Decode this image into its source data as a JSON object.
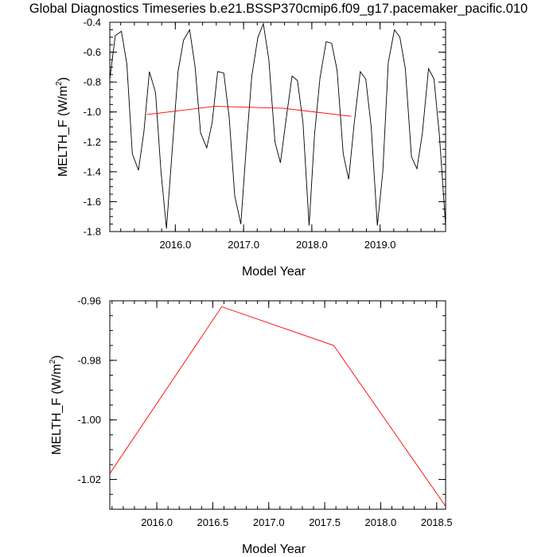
{
  "title": "Global Diagnostics Timeseries b.e21.BSSP370cmip6.f09_g17.pacemaker_pacific.010",
  "chart_data": [
    {
      "type": "line",
      "xlabel": "Model Year",
      "ylabel": "MELTH_F (W/m",
      "ylabel_sup": "2",
      "ylabel_close": ")",
      "xlim": [
        2015.04,
        2019.96
      ],
      "ylim": [
        -1.8,
        -0.4
      ],
      "xticks": [
        2016.0,
        2017.0,
        2018.0,
        2019.0
      ],
      "xtick_labels": [
        "2016.0",
        "2017.0",
        "2018.0",
        "2019.0"
      ],
      "yticks": [
        -0.4,
        -0.6,
        -0.8,
        -1.0,
        -1.2,
        -1.4,
        -1.6,
        -1.8
      ],
      "ytick_labels": [
        "-0.4",
        "-0.6",
        "-0.8",
        "-1.0",
        "-1.2",
        "-1.4",
        "-1.6",
        "-1.8"
      ],
      "series": [
        {
          "color": "#000000",
          "x": [
            2015.04,
            2015.12,
            2015.21,
            2015.29,
            2015.37,
            2015.46,
            2015.54,
            2015.62,
            2015.71,
            2015.79,
            2015.87,
            2015.96,
            2016.04,
            2016.12,
            2016.21,
            2016.29,
            2016.37,
            2016.46,
            2016.54,
            2016.62,
            2016.71,
            2016.79,
            2016.87,
            2016.96,
            2017.04,
            2017.12,
            2017.21,
            2017.29,
            2017.37,
            2017.46,
            2017.54,
            2017.62,
            2017.71,
            2017.79,
            2017.87,
            2017.96,
            2018.04,
            2018.12,
            2018.21,
            2018.29,
            2018.37,
            2018.46,
            2018.54,
            2018.62,
            2018.71,
            2018.79,
            2018.87,
            2018.96,
            2019.04,
            2019.12,
            2019.21,
            2019.29,
            2019.37,
            2019.46,
            2019.54,
            2019.62,
            2019.71,
            2019.79,
            2019.87,
            2019.96
          ],
          "y": [
            -0.78,
            -0.49,
            -0.46,
            -0.68,
            -1.28,
            -1.39,
            -1.13,
            -0.73,
            -0.87,
            -1.4,
            -1.78,
            -1.22,
            -0.73,
            -0.52,
            -0.45,
            -0.7,
            -1.14,
            -1.24,
            -1.07,
            -0.73,
            -0.74,
            -1.04,
            -1.56,
            -1.75,
            -1.23,
            -0.76,
            -0.5,
            -0.41,
            -0.65,
            -1.2,
            -1.34,
            -1.06,
            -0.76,
            -0.79,
            -1.07,
            -1.76,
            -1.15,
            -0.77,
            -0.53,
            -0.54,
            -0.72,
            -1.28,
            -1.45,
            -1.08,
            -0.73,
            -0.78,
            -1.1,
            -1.76,
            -1.4,
            -0.67,
            -0.45,
            -0.5,
            -0.71,
            -1.3,
            -1.38,
            -1.14,
            -0.71,
            -0.78,
            -1.16,
            -1.76
          ]
        },
        {
          "color": "#ff0000",
          "x": [
            2015.58,
            2016.58,
            2017.58,
            2018.58
          ],
          "y": [
            -1.018,
            -0.962,
            -0.975,
            -1.029
          ]
        }
      ]
    },
    {
      "type": "line",
      "xlabel": "Model Year",
      "ylabel": "MELTH_F (W/m",
      "ylabel_sup": "2",
      "ylabel_close": ")",
      "xlim": [
        2015.58,
        2018.58
      ],
      "ylim": [
        -1.03,
        -0.96
      ],
      "xticks": [
        2016.0,
        2016.5,
        2017.0,
        2017.5,
        2018.0,
        2018.5
      ],
      "xtick_labels": [
        "2016.0",
        "2016.5",
        "2017.0",
        "2017.5",
        "2018.0",
        "2018.5"
      ],
      "yticks": [
        -0.96,
        -0.98,
        -1.0,
        -1.02
      ],
      "ytick_labels": [
        "-0.96",
        "-0.98",
        "-1.00",
        "-1.02"
      ],
      "series": [
        {
          "color": "#ff0000",
          "x": [
            2015.58,
            2016.58,
            2017.58,
            2018.58
          ],
          "y": [
            -1.018,
            -0.962,
            -0.975,
            -1.029
          ]
        }
      ]
    }
  ]
}
